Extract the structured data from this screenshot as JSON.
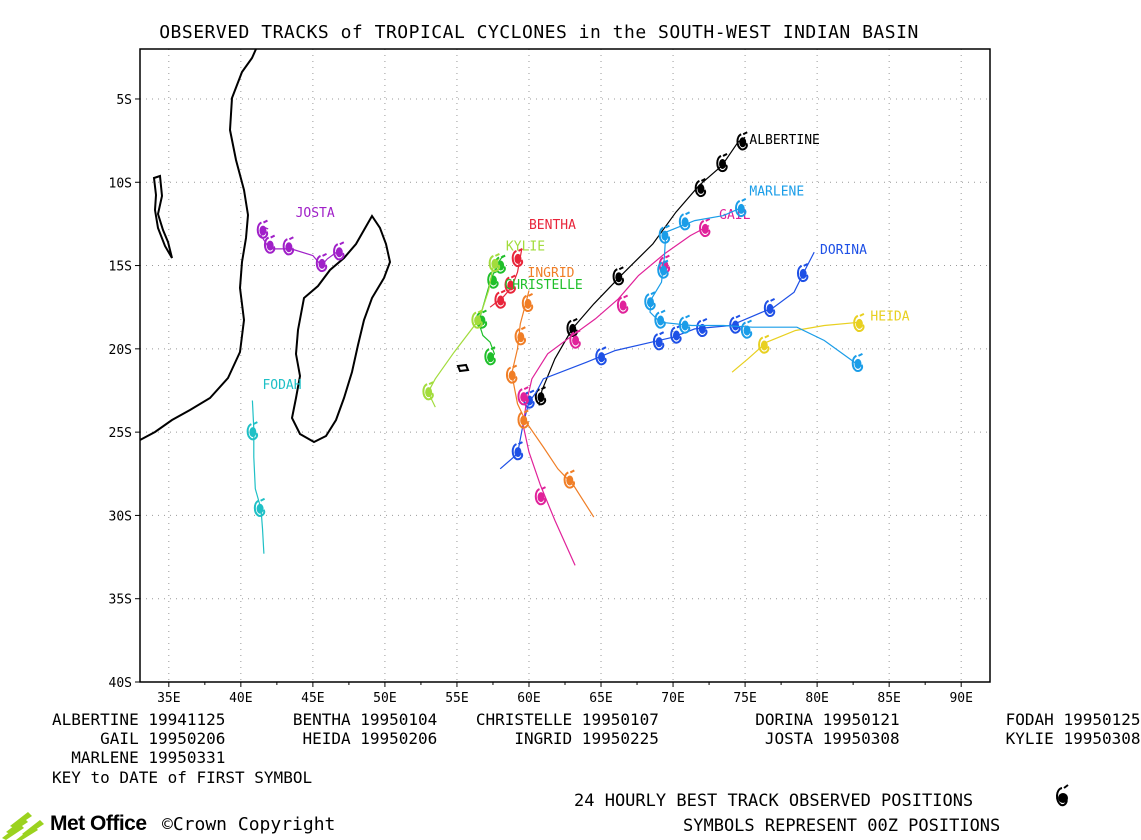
{
  "title": "OBSERVED TRACKS of TROPICAL CYCLONES in the SOUTH-WEST INDIAN BASIN",
  "axes": {
    "x_ticks": [
      {
        "value": 35,
        "label": "35E"
      },
      {
        "value": 40,
        "label": "40E"
      },
      {
        "value": 45,
        "label": "45E"
      },
      {
        "value": 50,
        "label": "50E"
      },
      {
        "value": 55,
        "label": "55E"
      },
      {
        "value": 60,
        "label": "60E"
      },
      {
        "value": 65,
        "label": "65E"
      },
      {
        "value": 70,
        "label": "70E"
      },
      {
        "value": 75,
        "label": "75E"
      },
      {
        "value": 80,
        "label": "80E"
      },
      {
        "value": 85,
        "label": "85E"
      },
      {
        "value": 90,
        "label": "90E"
      }
    ],
    "y_ticks": [
      {
        "value": -5,
        "label": "5S"
      },
      {
        "value": -10,
        "label": "10S"
      },
      {
        "value": -15,
        "label": "15S"
      },
      {
        "value": -20,
        "label": "20S"
      },
      {
        "value": -25,
        "label": "25S"
      },
      {
        "value": -30,
        "label": "30S"
      },
      {
        "value": -35,
        "label": "35S"
      },
      {
        "value": -40,
        "label": "40S"
      }
    ],
    "xlim": [
      33,
      92
    ],
    "ylim": [
      -40,
      -2
    ],
    "grid": true
  },
  "storms": [
    {
      "name": "ALBERTINE",
      "color": "#000000",
      "label_pos": [
        75.3,
        -7.7
      ],
      "track": [
        [
          75,
          -7.3
        ],
        [
          74.5,
          -7.6
        ],
        [
          73.4,
          -9.0
        ],
        [
          71.8,
          -10.2
        ],
        [
          70.2,
          -11.8
        ],
        [
          68.6,
          -13.7
        ],
        [
          66.5,
          -15.5
        ],
        [
          64.5,
          -17.3
        ],
        [
          63,
          -18.8
        ],
        [
          61.8,
          -20.6
        ],
        [
          60.9,
          -22.5
        ],
        [
          60.7,
          -23.4
        ]
      ],
      "positions": [
        [
          74.8,
          -7.6
        ],
        [
          73.4,
          -8.9
        ],
        [
          71.9,
          -10.4
        ],
        [
          66.2,
          -15.7
        ],
        [
          63,
          -18.8
        ],
        [
          60.8,
          -22.9
        ]
      ]
    },
    {
      "name": "BENTHA",
      "color": "#e8253a",
      "label_pos": [
        60,
        -12.8
      ],
      "track": [
        [
          59.5,
          -14
        ],
        [
          59.2,
          -15.4
        ],
        [
          58.8,
          -16.3
        ],
        [
          58.2,
          -16.9
        ],
        [
          57.3,
          -17.5
        ]
      ],
      "positions": [
        [
          59.2,
          -14.6
        ],
        [
          58.7,
          -16.2
        ],
        [
          58,
          -17.1
        ]
      ]
    },
    {
      "name": "CHRISTELLE",
      "color": "#1fbf2a",
      "label_pos": [
        58.3,
        -16.4
      ],
      "track": [
        [
          58.2,
          -14.4
        ],
        [
          57.8,
          -14.9
        ],
        [
          57.3,
          -16
        ],
        [
          56.8,
          -17.5
        ],
        [
          56.5,
          -18.4
        ],
        [
          56.8,
          -19.2
        ],
        [
          57.3,
          -19.6
        ],
        [
          57.6,
          -20.3
        ],
        [
          57.2,
          -20.8
        ]
      ],
      "positions": [
        [
          58,
          -15
        ],
        [
          57.5,
          -15.9
        ],
        [
          56.7,
          -18.3
        ],
        [
          57.3,
          -20.5
        ]
      ]
    },
    {
      "name": "DORINA",
      "color": "#1e50e6",
      "label_pos": [
        80.2,
        -14.3
      ],
      "track": [
        [
          79.8,
          -14.2
        ],
        [
          79.2,
          -15.2
        ],
        [
          78.4,
          -16.6
        ],
        [
          77,
          -17.5
        ],
        [
          74,
          -18.6
        ],
        [
          71.5,
          -18.8
        ],
        [
          70,
          -19.3
        ],
        [
          68.5,
          -19.6
        ],
        [
          66,
          -20.1
        ],
        [
          64,
          -20.8
        ],
        [
          61,
          -21.8
        ],
        [
          60.5,
          -22.6
        ],
        [
          60,
          -23.2
        ],
        [
          59.6,
          -24.5
        ],
        [
          59.2,
          -26.3
        ],
        [
          58,
          -27.2
        ]
      ],
      "positions": [
        [
          79,
          -15.5
        ],
        [
          76.7,
          -17.6
        ],
        [
          74.3,
          -18.6
        ],
        [
          72,
          -18.8
        ],
        [
          70.2,
          -19.2
        ],
        [
          69,
          -19.6
        ],
        [
          65,
          -20.5
        ],
        [
          60,
          -23.1
        ],
        [
          59.2,
          -26.2
        ]
      ]
    },
    {
      "name": "FODAH",
      "color": "#1fc0c6",
      "label_pos": [
        41.5,
        -22.4
      ],
      "track": [
        [
          40.8,
          -23.1
        ],
        [
          40.9,
          -24.8
        ],
        [
          40.9,
          -26.5
        ],
        [
          41,
          -28.4
        ],
        [
          41.4,
          -29.6
        ],
        [
          41.5,
          -30.8
        ],
        [
          41.6,
          -32.3
        ]
      ],
      "positions": [
        [
          40.8,
          -25
        ],
        [
          41.3,
          -29.6
        ]
      ]
    },
    {
      "name": "GAIL",
      "color": "#e0229a",
      "label_pos": [
        73.2,
        -12.2
      ],
      "track": [
        [
          72.5,
          -12.6
        ],
        [
          71.2,
          -13.2
        ],
        [
          69.4,
          -14.3
        ],
        [
          67.6,
          -15.6
        ],
        [
          66.2,
          -17
        ],
        [
          64.6,
          -18.2
        ],
        [
          62.7,
          -19.4
        ],
        [
          61.3,
          -20.3
        ],
        [
          60.2,
          -21.8
        ],
        [
          59.8,
          -23.3
        ],
        [
          59.6,
          -24.6
        ],
        [
          60,
          -26.2
        ],
        [
          60.8,
          -28.2
        ],
        [
          61.8,
          -30.3
        ],
        [
          63.2,
          -33
        ]
      ],
      "positions": [
        [
          72.2,
          -12.8
        ],
        [
          69.4,
          -15
        ],
        [
          66.5,
          -17.4
        ],
        [
          63.2,
          -19.5
        ],
        [
          59.6,
          -22.9
        ],
        [
          60.8,
          -28.9
        ]
      ]
    },
    {
      "name": "HEIDA",
      "color": "#e8d020",
      "label_pos": [
        83.7,
        -18.3
      ],
      "track": [
        [
          83,
          -18.4
        ],
        [
          80.5,
          -18.6
        ],
        [
          78.5,
          -18.9
        ],
        [
          76.5,
          -19.6
        ],
        [
          75.2,
          -20.6
        ],
        [
          74.1,
          -21.4
        ]
      ],
      "positions": [
        [
          82.9,
          -18.5
        ],
        [
          76.3,
          -19.8
        ]
      ]
    },
    {
      "name": "INGRID",
      "color": "#f07e26",
      "label_pos": [
        59.9,
        -15.7
      ],
      "track": [
        [
          60,
          -16.5
        ],
        [
          59.8,
          -17.2
        ],
        [
          59.4,
          -18.5
        ],
        [
          59.2,
          -20
        ],
        [
          58.8,
          -21.5
        ],
        [
          59.2,
          -23.3
        ],
        [
          59.8,
          -24.4
        ],
        [
          61,
          -25.9
        ],
        [
          62,
          -27.2
        ],
        [
          63.1,
          -28.2
        ],
        [
          64.5,
          -30.1
        ]
      ],
      "positions": [
        [
          59.9,
          -17.3
        ],
        [
          59.4,
          -19.3
        ],
        [
          58.8,
          -21.6
        ],
        [
          59.6,
          -24.3
        ],
        [
          62.8,
          -27.9
        ]
      ]
    },
    {
      "name": "JOSTA",
      "color": "#a020c8",
      "label_pos": [
        43.8,
        -12.1
      ],
      "track": [
        [
          41.9,
          -12.8
        ],
        [
          41.6,
          -12.7
        ],
        [
          41.4,
          -13.2
        ],
        [
          41.7,
          -13.6
        ],
        [
          42,
          -14
        ],
        [
          43.5,
          -14
        ],
        [
          45,
          -14.4
        ],
        [
          45.6,
          -15
        ],
        [
          46,
          -14.6
        ],
        [
          46.8,
          -14.1
        ]
      ],
      "positions": [
        [
          41.5,
          -12.9
        ],
        [
          42,
          -13.8
        ],
        [
          43.3,
          -13.9
        ],
        [
          45.6,
          -14.9
        ],
        [
          46.8,
          -14.2
        ]
      ]
    },
    {
      "name": "KYLIE",
      "color": "#a2dc3c",
      "label_pos": [
        58.4,
        -14.1
      ],
      "track": [
        [
          57.9,
          -14.6
        ],
        [
          57.5,
          -15.1
        ],
        [
          57.2,
          -16.5
        ],
        [
          56.7,
          -17.8
        ],
        [
          56.3,
          -18.5
        ],
        [
          54.8,
          -20.2
        ],
        [
          53.5,
          -21.8
        ],
        [
          53,
          -22.6
        ],
        [
          53.5,
          -23.5
        ]
      ],
      "positions": [
        [
          57.6,
          -14.9
        ],
        [
          56.4,
          -18.3
        ],
        [
          53,
          -22.6
        ]
      ]
    },
    {
      "name": "MARLENE",
      "color": "#1a9de8",
      "label_pos": [
        75.3,
        -10.8
      ],
      "track": [
        [
          74.8,
          -11.5
        ],
        [
          73.5,
          -12
        ],
        [
          71.5,
          -12.3
        ],
        [
          69.5,
          -13
        ],
        [
          69.4,
          -14.5
        ],
        [
          69.2,
          -16
        ],
        [
          68.5,
          -17
        ],
        [
          68.4,
          -17.8
        ],
        [
          69.1,
          -18.4
        ],
        [
          71.3,
          -18.6
        ],
        [
          73.5,
          -18.6
        ],
        [
          75.5,
          -18.7
        ],
        [
          78.6,
          -18.7
        ],
        [
          80.5,
          -19.5
        ],
        [
          82.9,
          -21
        ]
      ],
      "positions": [
        [
          74.7,
          -11.6
        ],
        [
          70.8,
          -12.4
        ],
        [
          69.4,
          -13.2
        ],
        [
          69.3,
          -15.3
        ],
        [
          68.4,
          -17.2
        ],
        [
          69.1,
          -18.3
        ],
        [
          70.8,
          -18.6
        ],
        [
          75.1,
          -18.9
        ],
        [
          82.8,
          -20.9
        ]
      ]
    }
  ],
  "legend_rows": [
    [
      {
        "name": "ALBERTINE",
        "date": "19941125"
      },
      {
        "name": "BENTHA",
        "date": "19950104"
      },
      {
        "name": "CHRISTELLE",
        "date": "19950107"
      },
      {
        "name": "DORINA",
        "date": "19950121"
      },
      {
        "name": "FODAH",
        "date": "19950125"
      }
    ],
    [
      {
        "name": "GAIL",
        "date": "19950206"
      },
      {
        "name": "HEIDA",
        "date": "19950206"
      },
      {
        "name": "INGRID",
        "date": "19950225"
      },
      {
        "name": "JOSTA",
        "date": "19950308"
      },
      {
        "name": "KYLIE",
        "date": "19950308"
      }
    ],
    [
      {
        "name": "MARLENE",
        "date": "19950331"
      }
    ]
  ],
  "legend_text": {
    "row1": "ALBERTINE 19941125       BENTHA 19950104    CHRISTELLE 19950107          DORINA 19950121           FODAH 19950125",
    "row2": "     GAIL 19950206        HEIDA 19950206        INGRID 19950225           JOSTA 19950308           KYLIE 19950308",
    "row3": "  MARLENE 19950331"
  },
  "key_note": "KEY to DATE of FIRST SYMBOL",
  "footer": {
    "line1": "24 HOURLY BEST TRACK OBSERVED POSITIONS",
    "line2": "SYMBOLS REPRESENT 00Z POSITIONS",
    "logo_text": "Met Office",
    "copyright": "©Crown Copyright"
  }
}
